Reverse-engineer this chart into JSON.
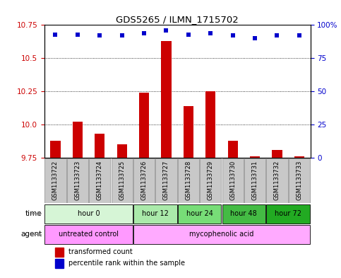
{
  "title": "GDS5265 / ILMN_1715702",
  "samples": [
    "GSM1133722",
    "GSM1133723",
    "GSM1133724",
    "GSM1133725",
    "GSM1133726",
    "GSM1133727",
    "GSM1133728",
    "GSM1133729",
    "GSM1133730",
    "GSM1133731",
    "GSM1133732",
    "GSM1133733"
  ],
  "transformed_count": [
    9.88,
    10.02,
    9.93,
    9.85,
    10.24,
    10.63,
    10.14,
    10.25,
    9.88,
    9.76,
    9.81,
    9.76
  ],
  "percentile_rank": [
    93,
    93,
    92,
    92,
    94,
    96,
    93,
    94,
    92,
    90,
    92,
    92
  ],
  "bar_color": "#cc0000",
  "dot_color": "#0000cc",
  "ylim_left": [
    9.75,
    10.75
  ],
  "ylim_right": [
    0,
    100
  ],
  "yticks_left": [
    9.75,
    10.0,
    10.25,
    10.5,
    10.75
  ],
  "yticks_right": [
    0,
    25,
    50,
    75,
    100
  ],
  "ytick_labels_right": [
    "0",
    "25",
    "50",
    "75",
    "100%"
  ],
  "time_groups": [
    {
      "label": "hour 0",
      "start": 0,
      "end": 4,
      "color": "#d6f5d6"
    },
    {
      "label": "hour 12",
      "start": 4,
      "end": 6,
      "color": "#aaeaaa"
    },
    {
      "label": "hour 24",
      "start": 6,
      "end": 8,
      "color": "#77dd77"
    },
    {
      "label": "hour 48",
      "start": 8,
      "end": 10,
      "color": "#44bb44"
    },
    {
      "label": "hour 72",
      "start": 10,
      "end": 12,
      "color": "#22aa22"
    }
  ],
  "agent_groups": [
    {
      "label": "untreated control",
      "start": 0,
      "end": 4,
      "color": "#ff99ff"
    },
    {
      "label": "mycophenolic acid",
      "start": 4,
      "end": 12,
      "color": "#ffaaff"
    }
  ],
  "legend_bar_label": "transformed count",
  "legend_dot_label": "percentile rank within the sample",
  "background_color": "#ffffff",
  "time_label": "time",
  "agent_label": "agent",
  "sample_box_color": "#c8c8c8",
  "sample_box_edge": "#888888"
}
